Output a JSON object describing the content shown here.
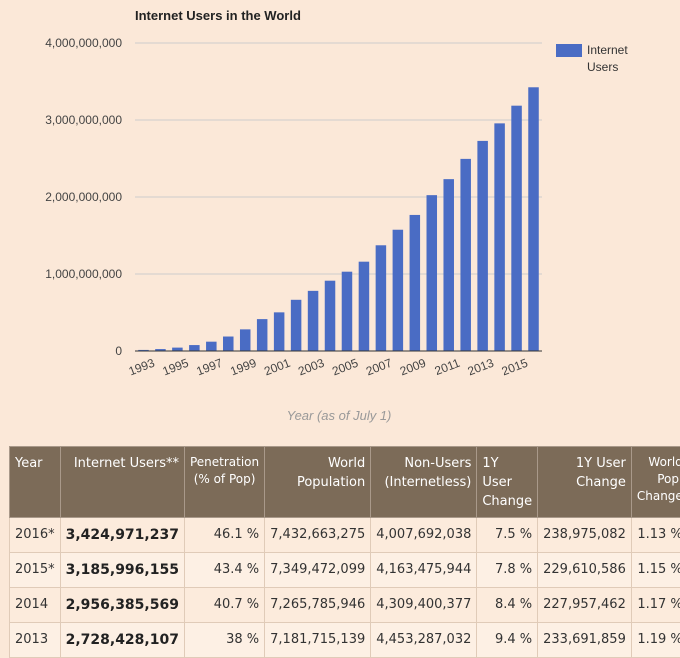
{
  "chart_data": {
    "type": "bar",
    "title": "Internet Users in the World",
    "xlabel": "Year (as of July 1)",
    "ylabel": "",
    "ylim": [
      0,
      4000000000
    ],
    "y_ticks": [
      "0",
      "1,000,000,000",
      "2,000,000,000",
      "3,000,000,000",
      "4,000,000,000"
    ],
    "y_tick_values": [
      0,
      1000000000,
      2000000000,
      3000000000,
      4000000000
    ],
    "x_tick_labels": [
      "1993",
      "1995",
      "1997",
      "1999",
      "2001",
      "2003",
      "2005",
      "2007",
      "2009",
      "2011",
      "2013",
      "2015"
    ],
    "legend": "right",
    "grid": true,
    "color": "#4a6cc4",
    "categories": [
      "1993",
      "1994",
      "1995",
      "1996",
      "1997",
      "1998",
      "1999",
      "2000",
      "2001",
      "2002",
      "2003",
      "2004",
      "2005",
      "2006",
      "2007",
      "2008",
      "2009",
      "2010",
      "2011",
      "2012",
      "2013",
      "2014",
      "2015",
      "2016"
    ],
    "series": [
      {
        "name": "Internet Users",
        "values": [
          14000000,
          25000000,
          44000000,
          77000000,
          121000000,
          188000000,
          281000000,
          414000000,
          502000000,
          665000000,
          781000000,
          913000000,
          1030000000,
          1160000000,
          1373000000,
          1575000000,
          1767000000,
          2024000000,
          2232000000,
          2495000000,
          2728428107,
          2956385569,
          3185996155,
          3424971237
        ]
      }
    ]
  },
  "table": {
    "headers": [
      "Year",
      "Internet Users**",
      "Penetration (% of Pop)",
      "World Population",
      "Non-Users (Internetless)",
      "1Y User Change",
      "1Y User Change",
      "World Pop. Change"
    ],
    "rows": [
      [
        "2016*",
        "3,424,971,237",
        "46.1 %",
        "7,432,663,275",
        "4,007,692,038",
        "7.5 %",
        "238,975,082",
        "1.13 %"
      ],
      [
        "2015*",
        "3,185,996,155",
        "43.4 %",
        "7,349,472,099",
        "4,163,475,944",
        "7.8 %",
        "229,610,586",
        "1.15 %"
      ],
      [
        "2014",
        "2,956,385,569",
        "40.7 %",
        "7,265,785,946",
        "4,309,400,377",
        "8.4 %",
        "227,957,462",
        "1.17 %"
      ],
      [
        "2013",
        "2,728,428,107",
        "38 %",
        "7,181,715,139",
        "4,453,287,032",
        "9.4 %",
        "233,691,859",
        "1.19 %"
      ]
    ]
  }
}
